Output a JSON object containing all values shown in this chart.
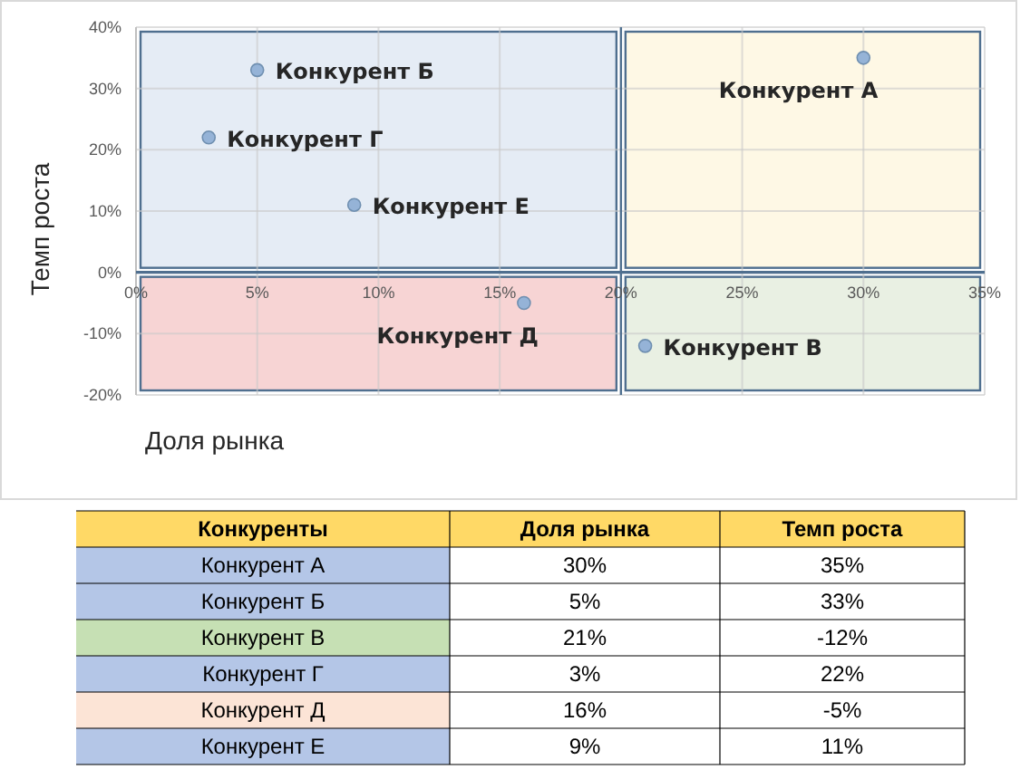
{
  "chart_data": [
    {
      "type": "scatter",
      "xlabel": "Доля рынка",
      "ylabel": "Темп роста",
      "x": [
        30,
        5,
        21,
        3,
        16,
        9
      ],
      "series": [
        {
          "color": "#95b3d7",
          "values": [
            35,
            33,
            -12,
            22,
            -5,
            11
          ]
        }
      ],
      "xlim": [
        0,
        35
      ],
      "xticks": [
        {
          "value": 0,
          "label": "0%"
        },
        {
          "value": 5,
          "label": "5%"
        },
        {
          "value": 10,
          "label": "10%"
        },
        {
          "value": 15,
          "label": "15%"
        },
        {
          "value": 20,
          "label": "20%"
        },
        {
          "value": 25,
          "label": "25%"
        },
        {
          "value": 30,
          "label": "30%"
        },
        {
          "value": 35,
          "label": "35%"
        }
      ],
      "ylim": [
        -20,
        40
      ],
      "yticks": [
        {
          "value": -20,
          "label": "-20%"
        },
        {
          "value": -10,
          "label": "-10%"
        },
        {
          "value": 0,
          "label": "0%"
        },
        {
          "value": 10,
          "label": "10%"
        },
        {
          "value": 20,
          "label": "20%"
        },
        {
          "value": 30,
          "label": "30%"
        },
        {
          "value": 40,
          "label": "40%"
        }
      ],
      "grid": true,
      "marker": "circle",
      "ref_lines": [
        {
          "axis": "x",
          "value": 20
        }
      ],
      "annotations": [
        {
          "text": "Конкурент А",
          "x": 30,
          "y": 35
        },
        {
          "text": "Конкурент Б",
          "x": 5,
          "y": 33
        },
        {
          "text": "Конкурент В",
          "x": 21,
          "y": -12
        },
        {
          "text": "Конкурент Г",
          "x": 3,
          "y": 22
        },
        {
          "text": "Конкурент Д",
          "x": 16,
          "y": -5
        },
        {
          "text": "Конкурент Е",
          "x": 9,
          "y": 11
        }
      ]
    },
    {
      "type": "other",
      "legend_title": "Конкуренты",
      "categories": [
        "Конкурент А",
        "Конкурент Б",
        "Конкурент В",
        "Конкурент Г",
        "Конкурент Д",
        "Конкурент Е"
      ],
      "colors": [
        "#b4c6e7",
        "#b4c6e7",
        "#c6e0b4",
        "#b4c6e7",
        "#fce4d6",
        "#b4c6e7"
      ],
      "series": [
        {
          "name": "Доля рынка",
          "values": [
            30,
            5,
            21,
            3,
            16,
            9
          ],
          "value_labels": [
            "30%",
            "5%",
            "21%",
            "3%",
            "16%",
            "9%"
          ]
        },
        {
          "name": "Темп роста",
          "values": [
            35,
            33,
            -12,
            22,
            -5,
            11
          ],
          "value_labels": [
            "35%",
            "33%",
            "-12%",
            "22%",
            "-5%",
            "11%"
          ]
        }
      ]
    }
  ]
}
